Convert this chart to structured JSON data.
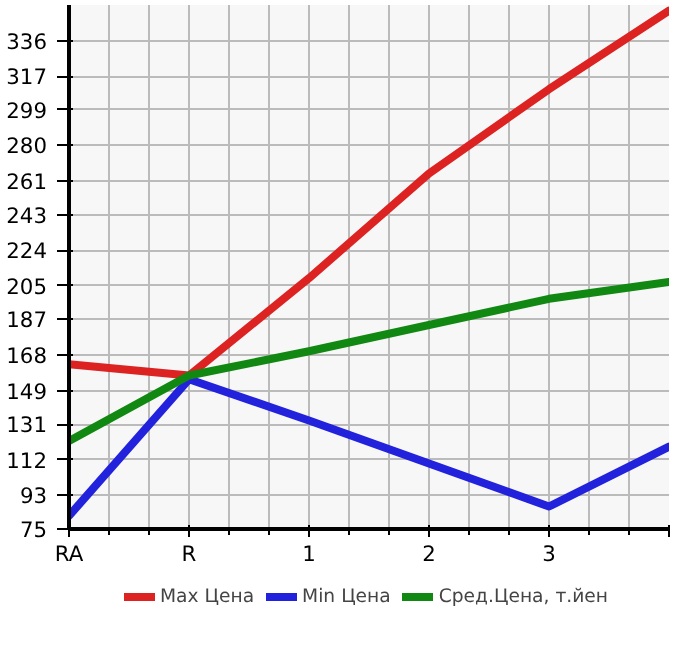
{
  "chart_data": {
    "type": "line",
    "categories": [
      "RA",
      "R",
      "1",
      "2",
      "3",
      null
    ],
    "ylim": [
      75,
      355
    ],
    "yticks": [
      75,
      93,
      112,
      131,
      149,
      168,
      187,
      205,
      224,
      243,
      261,
      280,
      299,
      317,
      336
    ],
    "grid": true,
    "legend": "bottom",
    "marker": "none",
    "line_style": "solid",
    "series": [
      {
        "name": "Max Цена",
        "color": "#dd2222",
        "values": [
          163,
          157,
          209,
          265,
          310,
          352
        ]
      },
      {
        "name": "Min Цена",
        "color": "#2222dd",
        "values": [
          82,
          155,
          133,
          110,
          87,
          119
        ]
      },
      {
        "name": "Сред.Цена, т.йен",
        "color": "#118811",
        "values": [
          122,
          157,
          170,
          184,
          198,
          207
        ]
      }
    ]
  }
}
